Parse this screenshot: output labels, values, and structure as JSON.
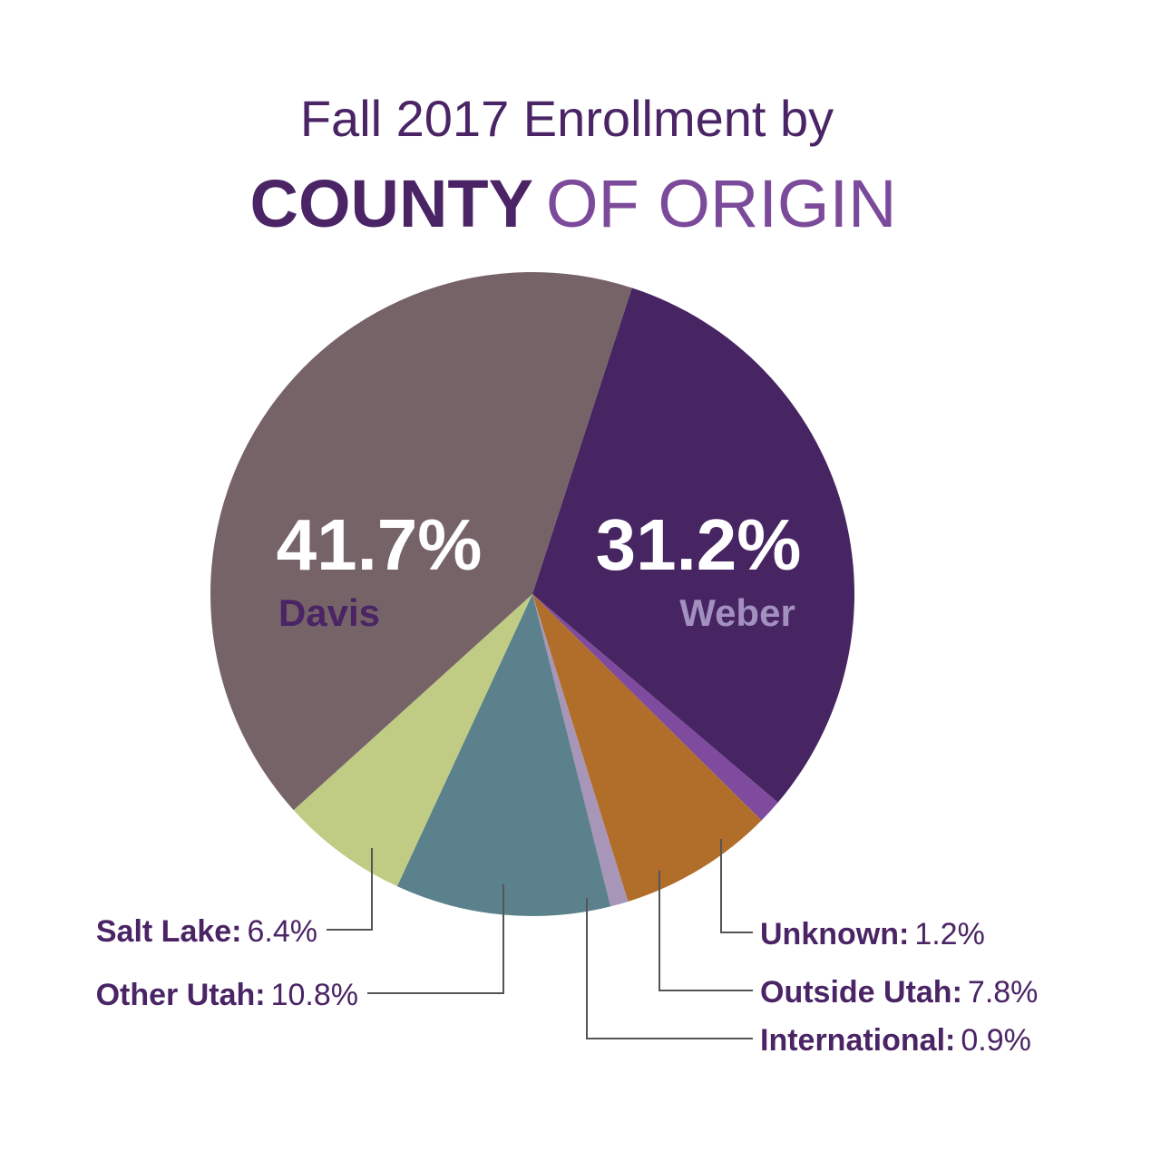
{
  "chart_data": {
    "type": "pie",
    "title": "Fall 2017 Enrollment by",
    "title_emphasis": "COUNTY",
    "title_rest": "OF ORIGIN",
    "categories": [
      "Weber",
      "Unknown:",
      "Outside Utah:",
      "International:",
      "Other Utah:",
      "Salt Lake:",
      "Davis"
    ],
    "values": [
      31.2,
      1.2,
      7.8,
      0.9,
      10.8,
      6.4,
      41.7
    ],
    "value_labels": [
      "31.2%",
      "1.2%",
      "7.8%",
      "0.9%",
      "10.8%",
      "6.4%",
      "41.7%"
    ],
    "colors": [
      "#472462",
      "#7f4b9e",
      "#b06e2a",
      "#a896b8",
      "#5a818c",
      "#c0cb84",
      "#766368"
    ]
  }
}
